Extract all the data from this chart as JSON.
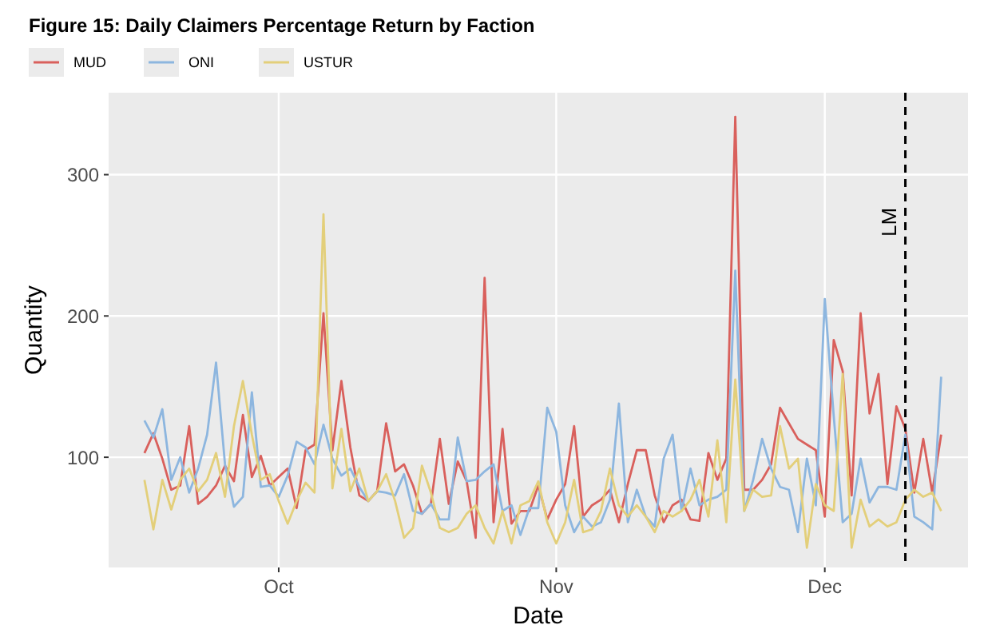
{
  "chart_data": {
    "type": "line",
    "title": "Figure 15: Daily Claimers Percentage Return by Faction",
    "xlabel": "Date",
    "ylabel": "Quantity",
    "x": [
      "--09-16",
      "--09-17",
      "--09-18",
      "--09-19",
      "--09-20",
      "--09-21",
      "--09-22",
      "--09-23",
      "--09-24",
      "--09-25",
      "--09-26",
      "--09-27",
      "--09-28",
      "--09-29",
      "--09-30",
      "--10-01",
      "--10-02",
      "--10-03",
      "--10-04",
      "--10-05",
      "--10-06",
      "--10-07",
      "--10-08",
      "--10-09",
      "--10-10",
      "--10-11",
      "--10-12",
      "--10-13",
      "--10-14",
      "--10-15",
      "--10-16",
      "--10-17",
      "--10-18",
      "--10-19",
      "--10-20",
      "--10-21",
      "--10-22",
      "--10-23",
      "--10-24",
      "--10-25",
      "--10-26",
      "--10-27",
      "--10-28",
      "--10-29",
      "--10-30",
      "--10-31",
      "--11-01",
      "--11-02",
      "--11-03",
      "--11-04",
      "--11-05",
      "--11-06",
      "--11-07",
      "--11-08",
      "--11-09",
      "--11-10",
      "--11-11",
      "--11-12",
      "--11-13",
      "--11-14",
      "--11-15",
      "--11-16",
      "--11-17",
      "--11-18",
      "--11-19",
      "--11-20",
      "--11-21",
      "--11-22",
      "--11-23",
      "--11-24",
      "--11-25",
      "--11-26",
      "--11-27",
      "--11-28",
      "--11-29",
      "--11-30",
      "--12-01",
      "--12-02",
      "--12-03",
      "--12-04",
      "--12-05",
      "--12-06",
      "--12-07",
      "--12-08",
      "--12-09",
      "--12-10",
      "--12-11",
      "--12-12",
      "--12-13",
      "--12-14"
    ],
    "series": [
      {
        "name": "MUD",
        "color": "#d9605c",
        "values": [
          103,
          117,
          99,
          77,
          80,
          122,
          67,
          72,
          80,
          94,
          83,
          130,
          86,
          101,
          80,
          86,
          92,
          64,
          105,
          109,
          202,
          105,
          154,
          107,
          73,
          69,
          76,
          124,
          90,
          95,
          80,
          60,
          67,
          113,
          67,
          97,
          83,
          43,
          227,
          54,
          120,
          53,
          62,
          62,
          80,
          56,
          70,
          81,
          122,
          58,
          66,
          70,
          77,
          54,
          81,
          105,
          105,
          73,
          54,
          66,
          70,
          56,
          55,
          103,
          84,
          99,
          341,
          77,
          77,
          84,
          95,
          135,
          124,
          113,
          109,
          105,
          58,
          183,
          161,
          73,
          202,
          131,
          159,
          81,
          136,
          120,
          75,
          113,
          75,
          116
        ]
      },
      {
        "name": "ONI",
        "color": "#8db6df",
        "values": [
          126,
          114,
          134,
          84,
          100,
          75,
          92,
          116,
          167,
          95,
          65,
          72,
          146,
          79,
          80,
          72,
          87,
          111,
          107,
          95,
          123,
          99,
          87,
          92,
          79,
          69,
          76,
          75,
          73,
          88,
          62,
          60,
          67,
          56,
          56,
          114,
          83,
          84,
          90,
          95,
          62,
          66,
          45,
          64,
          64,
          135,
          118,
          66,
          47,
          58,
          51,
          54,
          70,
          138,
          54,
          77,
          58,
          51,
          99,
          116,
          62,
          92,
          66,
          70,
          72,
          77,
          232,
          62,
          84,
          113,
          92,
          79,
          77,
          47,
          99,
          66,
          212,
          129,
          54,
          60,
          99,
          68,
          79,
          79,
          77,
          116,
          58,
          54,
          49,
          157
        ]
      },
      {
        "name": "USTUR",
        "color": "#e3cf7a",
        "values": [
          84,
          49,
          84,
          63,
          84,
          92,
          76,
          84,
          103,
          72,
          122,
          154,
          116,
          84,
          88,
          69,
          53,
          69,
          82,
          75,
          272,
          78,
          120,
          76,
          92,
          69,
          76,
          88,
          69,
          43,
          50,
          94,
          75,
          50,
          47,
          50,
          60,
          66,
          50,
          39,
          62,
          39,
          66,
          69,
          83,
          54,
          39,
          54,
          84,
          47,
          49,
          62,
          92,
          66,
          58,
          66,
          58,
          47,
          62,
          58,
          62,
          70,
          84,
          58,
          112,
          54,
          155,
          62,
          77,
          72,
          73,
          122,
          92,
          99,
          36,
          81,
          66,
          62,
          159,
          36,
          70,
          51,
          56,
          51,
          54,
          70,
          77,
          72,
          75,
          62
        ]
      }
    ],
    "xlim": [
      "--09-12",
      "--12-17"
    ],
    "xticks": [
      {
        "value": "--10-01",
        "label": "Oct"
      },
      {
        "value": "--11-01",
        "label": "Nov"
      },
      {
        "value": "--12-01",
        "label": "Dec"
      }
    ],
    "ylim": [
      22,
      358
    ],
    "yticks": [
      100,
      200,
      300
    ],
    "grid": true,
    "legend": "top left",
    "ref_lines": [
      {
        "axis": "x",
        "value": "--12-10",
        "label": "LM",
        "line_style": "dashed",
        "color": "#000000"
      }
    ]
  }
}
